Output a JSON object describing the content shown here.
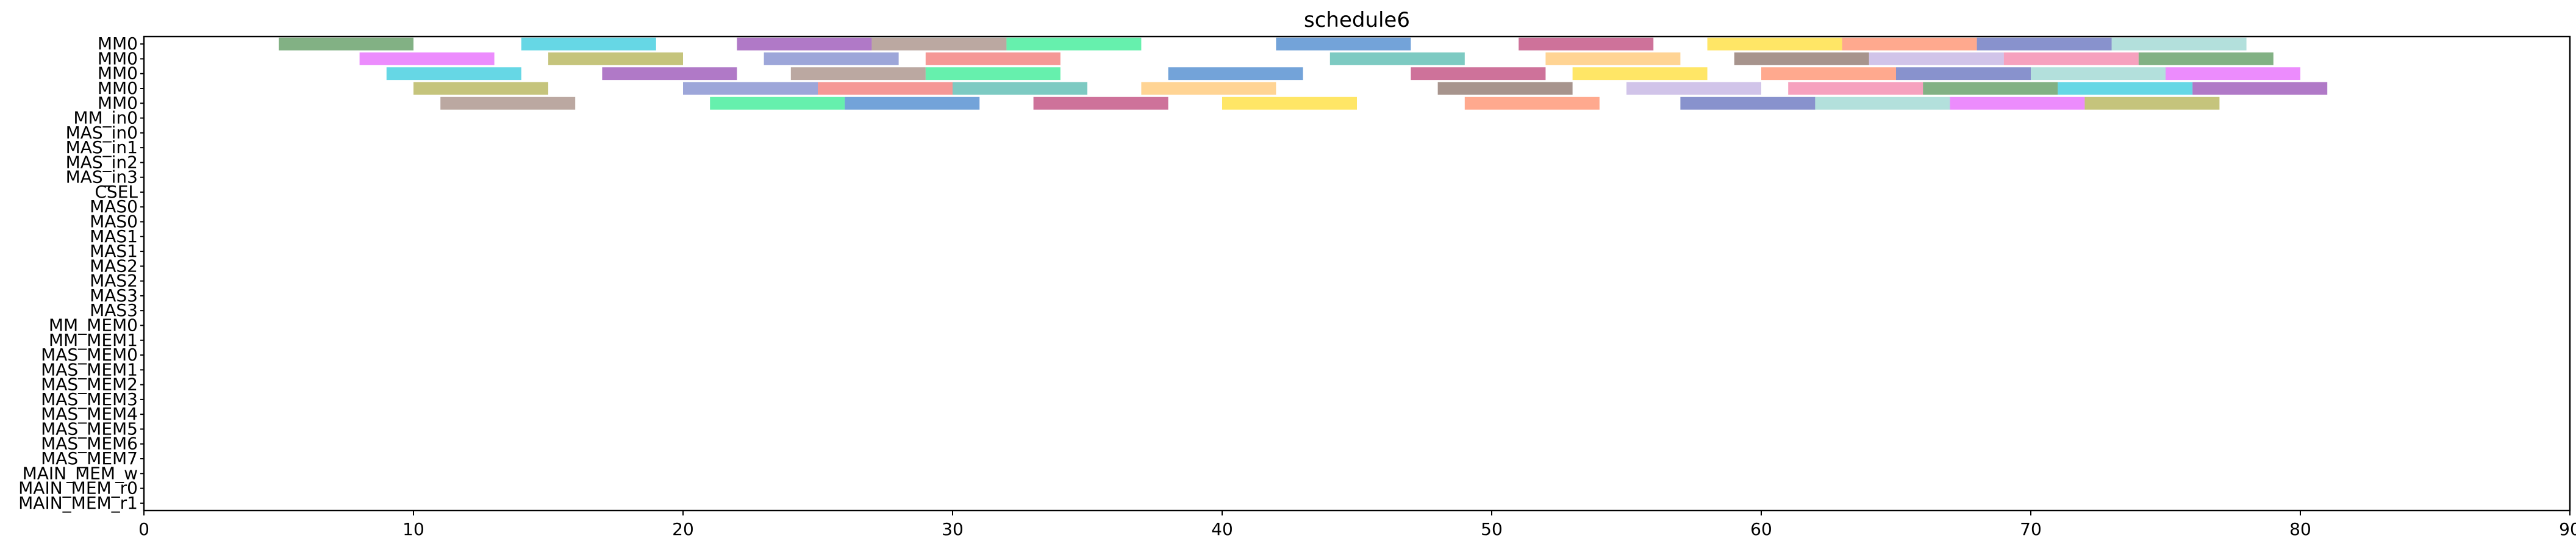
{
  "chart_data": {
    "type": "gantt",
    "title": "schedule6",
    "xlabel": "",
    "ylabel": "",
    "xlim": [
      0,
      90
    ],
    "xticks": [
      0,
      10,
      20,
      30,
      40,
      50,
      60,
      70,
      80,
      90
    ],
    "grid": false,
    "rows": [
      "MM0",
      "MM0",
      "MM0",
      "MM0",
      "MM0",
      "MM_in0",
      "MAS_in0",
      "MAS_in1",
      "MAS_in2",
      "MAS_in3",
      "CSEL",
      "MAS0",
      "MAS0",
      "MAS1",
      "MAS1",
      "MAS2",
      "MAS2",
      "MAS3",
      "MAS3",
      "MM_MEM0",
      "MM_MEM1",
      "MAS_MEM0",
      "MAS_MEM1",
      "MAS_MEM2",
      "MAS_MEM3",
      "MAS_MEM4",
      "MAS_MEM5",
      "MAS_MEM6",
      "MAS_MEM7",
      "MAIN_MEM_w",
      "MAIN_MEM_r0",
      "MAIN_MEM_r1"
    ],
    "bars": [
      {
        "row": 0,
        "start": 5.0,
        "end": 10.0
      },
      {
        "row": 0,
        "start": 14.0,
        "end": 19.0
      },
      {
        "row": 0,
        "start": 22.0,
        "end": 27.0
      },
      {
        "row": 0,
        "start": 27.0,
        "end": 32.0
      },
      {
        "row": 0,
        "start": 32.0,
        "end": 37.0
      },
      {
        "row": 0,
        "start": 42.0,
        "end": 47.0
      },
      {
        "row": 0,
        "start": 51.0,
        "end": 56.0
      },
      {
        "row": 0,
        "start": 58.0,
        "end": 63.0
      },
      {
        "row": 0,
        "start": 63.0,
        "end": 68.0
      },
      {
        "row": 0,
        "start": 68.0,
        "end": 73.0
      },
      {
        "row": 0,
        "start": 73.0,
        "end": 78.0
      },
      {
        "row": 1,
        "start": 8.0,
        "end": 13.0
      },
      {
        "row": 1,
        "start": 15.0,
        "end": 20.0
      },
      {
        "row": 1,
        "start": 23.0,
        "end": 28.0
      },
      {
        "row": 1,
        "start": 29.0,
        "end": 34.0
      },
      {
        "row": 1,
        "start": 44.0,
        "end": 49.0
      },
      {
        "row": 1,
        "start": 52.0,
        "end": 57.0
      },
      {
        "row": 1,
        "start": 59.0,
        "end": 64.0
      },
      {
        "row": 1,
        "start": 64.0,
        "end": 69.0
      },
      {
        "row": 1,
        "start": 69.0,
        "end": 74.0
      },
      {
        "row": 1,
        "start": 74.0,
        "end": 79.0
      },
      {
        "row": 2,
        "start": 9.0,
        "end": 14.0
      },
      {
        "row": 2,
        "start": 17.0,
        "end": 22.0
      },
      {
        "row": 2,
        "start": 24.0,
        "end": 29.0
      },
      {
        "row": 2,
        "start": 29.0,
        "end": 34.0
      },
      {
        "row": 2,
        "start": 38.0,
        "end": 43.0
      },
      {
        "row": 2,
        "start": 47.0,
        "end": 52.0
      },
      {
        "row": 2,
        "start": 53.0,
        "end": 58.0
      },
      {
        "row": 2,
        "start": 60.0,
        "end": 65.0
      },
      {
        "row": 2,
        "start": 65.0,
        "end": 70.0
      },
      {
        "row": 2,
        "start": 70.0,
        "end": 75.0
      },
      {
        "row": 2,
        "start": 75.0,
        "end": 80.0
      },
      {
        "row": 3,
        "start": 10.0,
        "end": 15.0
      },
      {
        "row": 3,
        "start": 20.0,
        "end": 25.0
      },
      {
        "row": 3,
        "start": 25.0,
        "end": 30.0
      },
      {
        "row": 3,
        "start": 30.0,
        "end": 35.0
      },
      {
        "row": 3,
        "start": 37.0,
        "end": 42.0
      },
      {
        "row": 3,
        "start": 48.0,
        "end": 53.0
      },
      {
        "row": 3,
        "start": 55.0,
        "end": 60.0
      },
      {
        "row": 3,
        "start": 61.0,
        "end": 66.0
      },
      {
        "row": 3,
        "start": 66.0,
        "end": 71.0
      },
      {
        "row": 3,
        "start": 71.0,
        "end": 76.0
      },
      {
        "row": 3,
        "start": 76.0,
        "end": 81.0
      },
      {
        "row": 4,
        "start": 11.0,
        "end": 16.0
      },
      {
        "row": 4,
        "start": 21.0,
        "end": 26.0
      },
      {
        "row": 4,
        "start": 26.0,
        "end": 31.0
      },
      {
        "row": 4,
        "start": 33.0,
        "end": 38.0
      },
      {
        "row": 4,
        "start": 40.0,
        "end": 45.0
      },
      {
        "row": 4,
        "start": 49.0,
        "end": 54.0
      },
      {
        "row": 4,
        "start": 57.0,
        "end": 62.0
      },
      {
        "row": 4,
        "start": 62.0,
        "end": 67.0
      },
      {
        "row": 4,
        "start": 67.0,
        "end": 72.0
      },
      {
        "row": 4,
        "start": 72.0,
        "end": 77.0
      }
    ]
  }
}
